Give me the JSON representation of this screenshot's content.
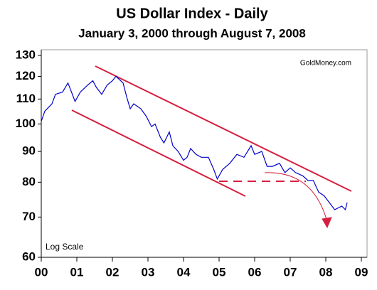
{
  "chart_data": {
    "type": "line",
    "title": "US Dollar Index - Daily",
    "subtitle": "January 3, 2000 through August 7, 2008",
    "source": "GoldMoney.com",
    "note": "Log Scale",
    "log_y": true,
    "color": "#0000cc",
    "x": [
      2000.0,
      2000.1,
      2000.3,
      2000.4,
      2000.6,
      2000.75,
      2000.85,
      2000.95,
      2001.1,
      2001.3,
      2001.45,
      2001.55,
      2001.7,
      2001.85,
      2002.0,
      2002.1,
      2002.3,
      2002.4,
      2002.5,
      2002.6,
      2002.8,
      2002.95,
      2003.1,
      2003.2,
      2003.35,
      2003.45,
      2003.6,
      2003.7,
      2003.85,
      2004.0,
      2004.1,
      2004.2,
      2004.35,
      2004.5,
      2004.7,
      2004.85,
      2004.95,
      2005.1,
      2005.3,
      2005.5,
      2005.7,
      2005.9,
      2006.0,
      2006.2,
      2006.35,
      2006.5,
      2006.7,
      2006.85,
      2007.0,
      2007.15,
      2007.35,
      2007.5,
      2007.65,
      2007.8,
      2007.95,
      2008.1,
      2008.25,
      2008.45,
      2008.55,
      2008.6
    ],
    "values": [
      101,
      105,
      108,
      112,
      113,
      117,
      113,
      109,
      113,
      116,
      118,
      115,
      112,
      116,
      118,
      120,
      117,
      111,
      106,
      108,
      106,
      103,
      99,
      100,
      95,
      93,
      97,
      92,
      90,
      87,
      88,
      91,
      89,
      88,
      88,
      84,
      81,
      84,
      86,
      89,
      88,
      92,
      89,
      90,
      85,
      85,
      86,
      83,
      84.5,
      83,
      82,
      80.5,
      80.5,
      77,
      76,
      74,
      72,
      73,
      72,
      74
    ],
    "xlim": [
      2000,
      2009
    ],
    "xticks": [
      {
        "value": 2000,
        "label": "00"
      },
      {
        "value": 2001,
        "label": "01"
      },
      {
        "value": 2002,
        "label": "02"
      },
      {
        "value": 2003,
        "label": "03"
      },
      {
        "value": 2004,
        "label": "04"
      },
      {
        "value": 2005,
        "label": "05"
      },
      {
        "value": 2006,
        "label": "06"
      },
      {
        "value": 2007,
        "label": "07"
      },
      {
        "value": 2008,
        "label": "08"
      },
      {
        "value": 2009,
        "label": "09"
      }
    ],
    "ylim": [
      60,
      130
    ],
    "yticks": [
      60,
      70,
      80,
      90,
      100,
      110,
      120,
      130
    ]
  }
}
